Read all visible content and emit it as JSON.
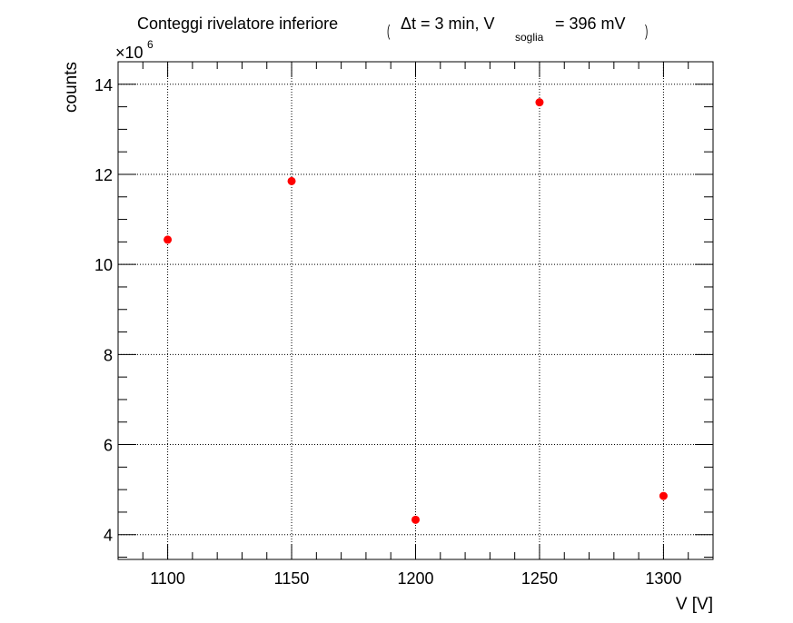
{
  "chart_data": {
    "type": "scatter",
    "title": {
      "main": "Conteggi rivelatore inferiore",
      "dt_part": "Δt = 3 min, V",
      "subscript": "soglia",
      "tail": "= 396 mV"
    },
    "xlabel": "V [V]",
    "ylabel": "counts",
    "y_exponent_label": "×10",
    "y_exponent_power": "6",
    "xlim": [
      1080,
      1320
    ],
    "ylim": [
      3.45,
      14.5
    ],
    "x_ticks": [
      1100,
      1150,
      1200,
      1250,
      1300
    ],
    "x_tick_labels": [
      "1100",
      "1150",
      "1200",
      "1250",
      "1300"
    ],
    "y_ticks": [
      4,
      6,
      8,
      10,
      12,
      14
    ],
    "y_tick_labels": [
      "4",
      "6",
      "8",
      "10",
      "12",
      "14"
    ],
    "grid": true,
    "marker_color": "#ff0000",
    "points": [
      {
        "x": 1100,
        "y": 10.55
      },
      {
        "x": 1150,
        "y": 11.85
      },
      {
        "x": 1200,
        "y": 4.33
      },
      {
        "x": 1250,
        "y": 13.6
      },
      {
        "x": 1300,
        "y": 4.86
      }
    ]
  }
}
